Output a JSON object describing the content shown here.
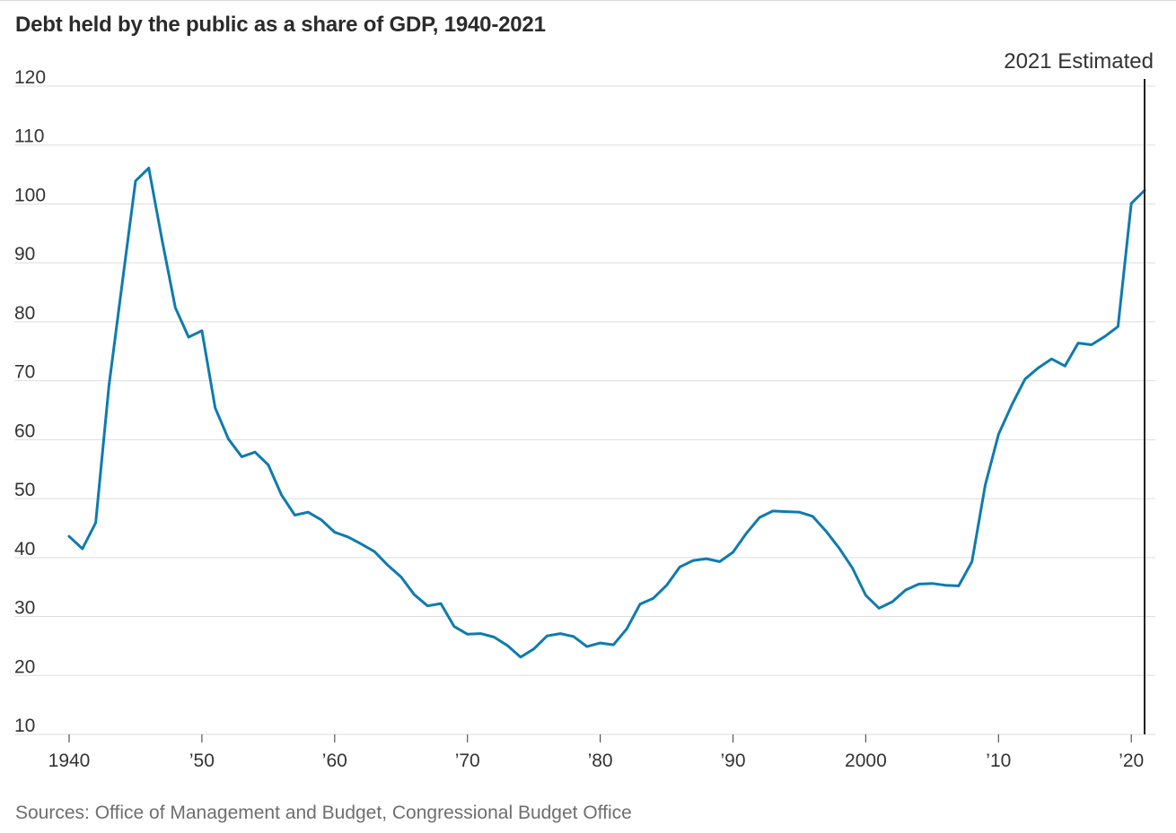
{
  "title": "Debt held by the public as a share of GDP, 1940-2021",
  "source": "Sources: Office of Management and Budget, Congressional Budget Office",
  "colors": {
    "line": "#0e7bb0",
    "grid": "#dddddd",
    "axis_text": "#333333",
    "marker": "#222222"
  },
  "chart_data": {
    "type": "line",
    "title": "Debt held by the public as a share of GDP, 1940-2021",
    "xlabel": "",
    "ylabel": "",
    "xlim": [
      1940,
      2021
    ],
    "ylim": [
      10,
      120
    ],
    "y_ticks": [
      10,
      20,
      30,
      40,
      50,
      60,
      70,
      80,
      90,
      100,
      110,
      120
    ],
    "x_ticks": [
      {
        "year": 1940,
        "label": "1940"
      },
      {
        "year": 1950,
        "label": "’50"
      },
      {
        "year": 1960,
        "label": "’60"
      },
      {
        "year": 1970,
        "label": "’70"
      },
      {
        "year": 1980,
        "label": "’80"
      },
      {
        "year": 1990,
        "label": "’90"
      },
      {
        "year": 2000,
        "label": "2000"
      },
      {
        "year": 2010,
        "label": "’10"
      },
      {
        "year": 2020,
        "label": "’20"
      }
    ],
    "grid": true,
    "annotations": [
      {
        "x": 2021,
        "text": "2021 Estimated"
      }
    ],
    "series": [
      {
        "x": [
          1940,
          1941,
          1942,
          1943,
          1944,
          1945,
          1946,
          1947,
          1948,
          1949,
          1950,
          1951,
          1952,
          1953,
          1954,
          1955,
          1956,
          1957,
          1958,
          1959,
          1960,
          1961,
          1962,
          1963,
          1964,
          1965,
          1966,
          1967,
          1968,
          1969,
          1970,
          1971,
          1972,
          1973,
          1974,
          1975,
          1976,
          1977,
          1978,
          1979,
          1980,
          1981,
          1982,
          1983,
          1984,
          1985,
          1986,
          1987,
          1988,
          1989,
          1990,
          1991,
          1992,
          1993,
          1994,
          1995,
          1996,
          1997,
          1998,
          1999,
          2000,
          2001,
          2002,
          2003,
          2004,
          2005,
          2006,
          2007,
          2008,
          2009,
          2010,
          2011,
          2012,
          2013,
          2014,
          2015,
          2016,
          2017,
          2018,
          2019,
          2020,
          2021
        ],
        "values": [
          43.6,
          41.5,
          45.9,
          69.2,
          86.6,
          103.9,
          106.1,
          93.9,
          82.4,
          77.4,
          78.5,
          65.4,
          60.1,
          57.1,
          57.9,
          55.7,
          50.6,
          47.2,
          47.7,
          46.4,
          44.3,
          43.5,
          42.3,
          41.0,
          38.7,
          36.7,
          33.7,
          31.8,
          32.2,
          28.3,
          27.0,
          27.1,
          26.5,
          25.1,
          23.1,
          24.5,
          26.7,
          27.1,
          26.6,
          24.9,
          25.5,
          25.2,
          27.9,
          32.1,
          33.1,
          35.3,
          38.4,
          39.5,
          39.8,
          39.3,
          40.9,
          44.1,
          46.8,
          47.9,
          47.8,
          47.7,
          47.0,
          44.5,
          41.6,
          38.2,
          33.6,
          31.4,
          32.5,
          34.5,
          35.5,
          35.6,
          35.3,
          35.2,
          39.3,
          52.3,
          60.9,
          65.9,
          70.3,
          72.2,
          73.7,
          72.5,
          76.4,
          76.1,
          77.5,
          79.2,
          100.1,
          102.3
        ]
      }
    ]
  }
}
